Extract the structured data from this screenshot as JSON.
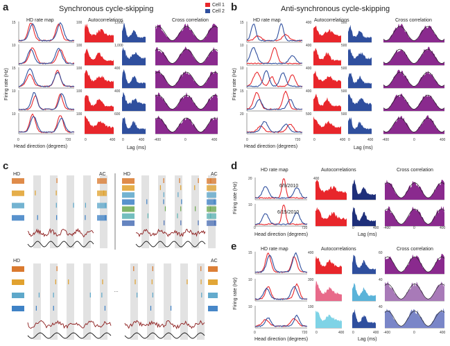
{
  "panels": {
    "a": {
      "label": "a",
      "title": "Synchronous cycle-skipping",
      "headers": [
        "HD rate map",
        "Autocorrelations",
        "Cross correlation"
      ],
      "ylabel": "Firing rate (Hz)",
      "xlabel_hd": "Head direction (degrees)",
      "xlabel_lag": "Lag (ms)",
      "rate_ticks": [
        "15",
        "10",
        "15",
        "10",
        "10"
      ],
      "ac1_ticks": [
        "100",
        "100",
        "100",
        "100",
        "100"
      ],
      "ac2_ticks": [
        "1,000",
        "1,000",
        "400",
        "400",
        "600"
      ],
      "hd_axis": [
        "0",
        "720"
      ],
      "ac_axis": [
        "0",
        "400"
      ],
      "cc_axis": [
        "-400",
        "0",
        "400"
      ]
    },
    "b": {
      "label": "b",
      "title": "Anti-synchronous cycle-skipping",
      "headers": [
        "HD rate map",
        "Autocorrelations",
        "Cross correlation"
      ],
      "ylabel": "Firing rate (Hz)",
      "xlabel_hd": "Head direction (degrees)",
      "xlabel_lag": "Lag (ms)",
      "rate_ticks": [
        "15",
        "10",
        "10",
        "15",
        "20"
      ],
      "ac1_ticks": [
        "400",
        "400",
        "400",
        "400",
        "500"
      ],
      "ac2_ticks": [
        "500",
        "500",
        "500",
        "500",
        "500"
      ],
      "hd_axis": [
        "0",
        "720"
      ],
      "ac_axis": [
        "0",
        "400"
      ],
      "cc_axis": [
        "-400",
        "0",
        "400"
      ]
    },
    "c": {
      "label": "c",
      "hd_label": "HD",
      "ac_label": "AC",
      "ellipsis": "…"
    },
    "d": {
      "label": "d",
      "headers": [
        "HD rate map",
        "Autocorrelations",
        "Cross correlation"
      ],
      "ylabel": "Firing rate (Hz)",
      "xlabel_hd": "Head direction (degrees)",
      "xlabel_lag": "Lag (ms)",
      "dates": [
        "6/9/2010",
        "6/15/2010"
      ],
      "rate_ticks": [
        "20",
        "10"
      ],
      "ac_tick": "400",
      "hd_axis": [
        "0",
        "720"
      ],
      "ac_axis": [
        "0",
        "400"
      ],
      "cc_axis": [
        "-400",
        "0",
        "400"
      ]
    },
    "e": {
      "label": "e",
      "headers": [
        "HD rate map",
        "Autocorrelations",
        "Cross correlation"
      ],
      "ylabel": "Firing rate (Hz)",
      "xlabel_hd": "Head direction (degrees)",
      "xlabel_lag": "Lag (ms)",
      "rate_ticks": [
        "15",
        "10",
        "10"
      ],
      "ac_ticks": [
        "400",
        "300",
        "100"
      ],
      "cc_ticks": [
        "60",
        "40",
        "40"
      ],
      "hd_axis": [
        "0",
        "720"
      ],
      "ac_axis": [
        "0",
        "400"
      ],
      "cc_axis": [
        "-400",
        "0",
        "400"
      ]
    }
  },
  "legend": {
    "cell1": "Cell 1",
    "cell2": "Cell 2"
  },
  "colors": {
    "red": "#e8262b",
    "blue": "#2f4f9e",
    "purple": "#8a2a8e",
    "darkred": "#8b1a1a",
    "gray": "#e2e2e2"
  }
}
